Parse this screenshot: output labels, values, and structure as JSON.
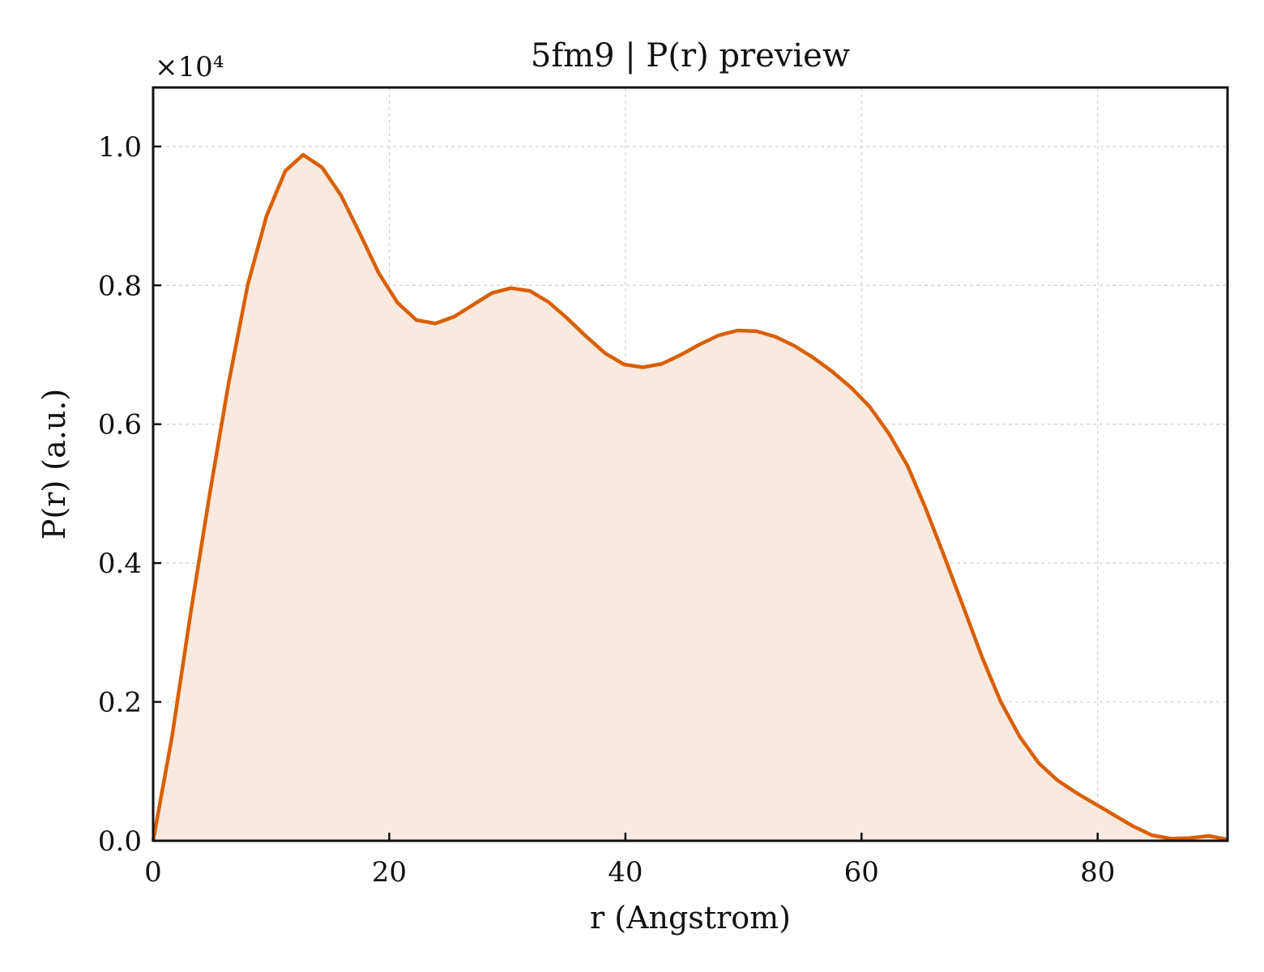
{
  "chart_data": {
    "type": "area",
    "title": "5fm9 | P(r) preview",
    "xlabel": "r (Angstrom)",
    "ylabel": "P(r) (a.u.)",
    "y_multiplier": "×10⁴",
    "xlim": [
      0,
      91
    ],
    "ylim": [
      0,
      1.085
    ],
    "xticks": [
      0,
      20,
      40,
      60,
      80
    ],
    "xtick_labels": [
      "0",
      "20",
      "40",
      "60",
      "80"
    ],
    "yticks": [
      0.0,
      0.2,
      0.4,
      0.6,
      0.8,
      1.0
    ],
    "ytick_labels": [
      "0.0",
      "0.2",
      "0.4",
      "0.6",
      "0.8",
      "1.0"
    ],
    "grid": true,
    "colors": {
      "line": "#d95f02",
      "fill": "#f9e9df"
    },
    "series": [
      {
        "x": [
          0,
          1.6,
          3.2,
          4.8,
          6.4,
          8.0,
          9.6,
          11.2,
          12.7,
          14.3,
          15.9,
          17.5,
          19.1,
          20.7,
          22.3,
          23.9,
          25.5,
          27.1,
          28.7,
          30.3,
          31.9,
          33.5,
          35.1,
          36.7,
          38.3,
          39.9,
          41.5,
          43.1,
          44.7,
          46.3,
          47.9,
          49.5,
          51.1,
          52.7,
          54.3,
          55.9,
          57.5,
          59.1,
          60.7,
          62.3,
          63.9,
          65.4,
          67.0,
          68.6,
          70.2,
          71.8,
          73.4,
          75.0,
          76.6,
          78.2,
          79.8,
          81.4,
          83.0,
          84.6,
          86.2,
          87.8,
          89.4,
          91.0
        ],
        "y": [
          0.0,
          0.15,
          0.33,
          0.5,
          0.66,
          0.8,
          0.9,
          0.965,
          0.988,
          0.97,
          0.93,
          0.875,
          0.818,
          0.775,
          0.75,
          0.745,
          0.755,
          0.772,
          0.789,
          0.796,
          0.792,
          0.776,
          0.752,
          0.726,
          0.702,
          0.686,
          0.682,
          0.687,
          0.7,
          0.715,
          0.728,
          0.735,
          0.734,
          0.726,
          0.713,
          0.696,
          0.676,
          0.653,
          0.625,
          0.587,
          0.54,
          0.48,
          0.41,
          0.338,
          0.265,
          0.2,
          0.15,
          0.112,
          0.087,
          0.069,
          0.053,
          0.037,
          0.021,
          0.008,
          0.003,
          0.004,
          0.007,
          0.002
        ]
      }
    ]
  }
}
